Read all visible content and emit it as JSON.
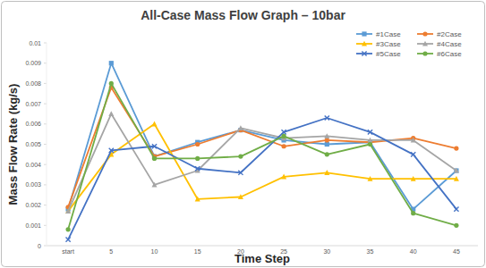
{
  "chart_data": {
    "type": "line",
    "title": "All-Case Mass Flow Graph – 10bar",
    "x_label": "Time Step",
    "y_label": "Mass Flow Rate (kg/s)",
    "categories": [
      "start",
      "5",
      "10",
      "15",
      "20",
      "25",
      "30",
      "35",
      "40",
      "45"
    ],
    "series": [
      {
        "name": "#1Case",
        "color": "#5b9bd5",
        "marker": "square",
        "values": [
          0.0018,
          0.009,
          0.0044,
          0.0051,
          0.0057,
          0.0052,
          0.005,
          0.0051,
          0.0018,
          0.0037
        ]
      },
      {
        "name": "#2Case",
        "color": "#ed7d31",
        "marker": "circle",
        "values": [
          0.0019,
          0.0078,
          0.0044,
          0.005,
          0.0057,
          0.0049,
          0.0052,
          0.0051,
          0.0053,
          0.0048
        ]
      },
      {
        "name": "#3Case",
        "color": "#ffc000",
        "marker": "triangle",
        "values": [
          0.0017,
          0.0045,
          0.006,
          0.0023,
          0.0024,
          0.0034,
          0.0036,
          0.0033,
          0.0033,
          0.0033
        ]
      },
      {
        "name": "#4Case",
        "color": "#a5a5a5",
        "marker": "triangle",
        "values": [
          0.0017,
          0.0065,
          0.003,
          0.0037,
          0.0058,
          0.0053,
          0.0054,
          0.0052,
          0.0052,
          0.0037
        ]
      },
      {
        "name": "#5Case",
        "color": "#4472c4",
        "marker": "x",
        "values": [
          0.0003,
          0.0047,
          0.0049,
          0.0038,
          0.0036,
          0.0056,
          0.0063,
          0.0056,
          0.0045,
          0.0018
        ]
      },
      {
        "name": "#6Case",
        "color": "#70ad47",
        "marker": "circle",
        "values": [
          0.0008,
          0.008,
          0.0043,
          0.0043,
          0.0044,
          0.0054,
          0.0045,
          0.005,
          0.0016,
          0.001
        ]
      }
    ],
    "ylim": [
      0,
      0.01
    ],
    "yticks": [
      0,
      0.001,
      0.002,
      0.003,
      0.004,
      0.005,
      0.006,
      0.007,
      0.008,
      0.009,
      0.01
    ],
    "grid": false,
    "legend": "top-right"
  }
}
